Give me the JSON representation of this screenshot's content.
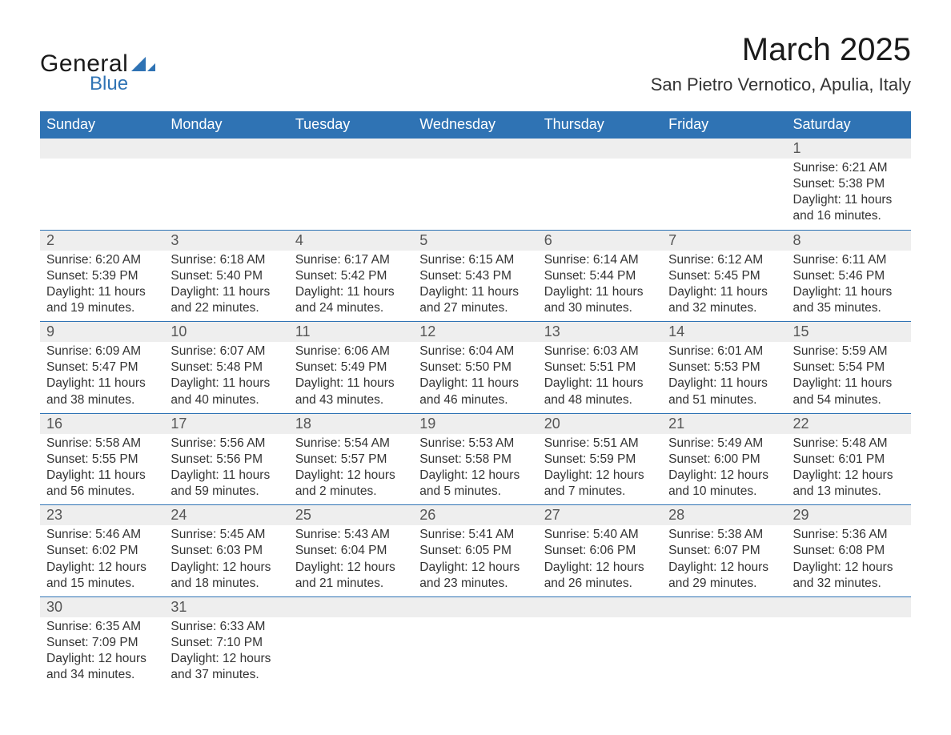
{
  "logo": {
    "text_general": "General",
    "text_blue": "Blue",
    "shape_color": "#2f73b4"
  },
  "title": "March 2025",
  "location": "San Pietro Vernotico, Apulia, Italy",
  "colors": {
    "header_bg": "#2f73b4",
    "header_text": "#ffffff",
    "daynum_bg": "#eeeeee",
    "border": "#2f73b4",
    "text": "#333333",
    "background": "#ffffff"
  },
  "weekdays": [
    "Sunday",
    "Monday",
    "Tuesday",
    "Wednesday",
    "Thursday",
    "Friday",
    "Saturday"
  ],
  "weeks": [
    [
      null,
      null,
      null,
      null,
      null,
      null,
      {
        "n": "1",
        "sr": "6:21 AM",
        "ss": "5:38 PM",
        "dl": "11 hours and 16 minutes."
      }
    ],
    [
      {
        "n": "2",
        "sr": "6:20 AM",
        "ss": "5:39 PM",
        "dl": "11 hours and 19 minutes."
      },
      {
        "n": "3",
        "sr": "6:18 AM",
        "ss": "5:40 PM",
        "dl": "11 hours and 22 minutes."
      },
      {
        "n": "4",
        "sr": "6:17 AM",
        "ss": "5:42 PM",
        "dl": "11 hours and 24 minutes."
      },
      {
        "n": "5",
        "sr": "6:15 AM",
        "ss": "5:43 PM",
        "dl": "11 hours and 27 minutes."
      },
      {
        "n": "6",
        "sr": "6:14 AM",
        "ss": "5:44 PM",
        "dl": "11 hours and 30 minutes."
      },
      {
        "n": "7",
        "sr": "6:12 AM",
        "ss": "5:45 PM",
        "dl": "11 hours and 32 minutes."
      },
      {
        "n": "8",
        "sr": "6:11 AM",
        "ss": "5:46 PM",
        "dl": "11 hours and 35 minutes."
      }
    ],
    [
      {
        "n": "9",
        "sr": "6:09 AM",
        "ss": "5:47 PM",
        "dl": "11 hours and 38 minutes."
      },
      {
        "n": "10",
        "sr": "6:07 AM",
        "ss": "5:48 PM",
        "dl": "11 hours and 40 minutes."
      },
      {
        "n": "11",
        "sr": "6:06 AM",
        "ss": "5:49 PM",
        "dl": "11 hours and 43 minutes."
      },
      {
        "n": "12",
        "sr": "6:04 AM",
        "ss": "5:50 PM",
        "dl": "11 hours and 46 minutes."
      },
      {
        "n": "13",
        "sr": "6:03 AM",
        "ss": "5:51 PM",
        "dl": "11 hours and 48 minutes."
      },
      {
        "n": "14",
        "sr": "6:01 AM",
        "ss": "5:53 PM",
        "dl": "11 hours and 51 minutes."
      },
      {
        "n": "15",
        "sr": "5:59 AM",
        "ss": "5:54 PM",
        "dl": "11 hours and 54 minutes."
      }
    ],
    [
      {
        "n": "16",
        "sr": "5:58 AM",
        "ss": "5:55 PM",
        "dl": "11 hours and 56 minutes."
      },
      {
        "n": "17",
        "sr": "5:56 AM",
        "ss": "5:56 PM",
        "dl": "11 hours and 59 minutes."
      },
      {
        "n": "18",
        "sr": "5:54 AM",
        "ss": "5:57 PM",
        "dl": "12 hours and 2 minutes."
      },
      {
        "n": "19",
        "sr": "5:53 AM",
        "ss": "5:58 PM",
        "dl": "12 hours and 5 minutes."
      },
      {
        "n": "20",
        "sr": "5:51 AM",
        "ss": "5:59 PM",
        "dl": "12 hours and 7 minutes."
      },
      {
        "n": "21",
        "sr": "5:49 AM",
        "ss": "6:00 PM",
        "dl": "12 hours and 10 minutes."
      },
      {
        "n": "22",
        "sr": "5:48 AM",
        "ss": "6:01 PM",
        "dl": "12 hours and 13 minutes."
      }
    ],
    [
      {
        "n": "23",
        "sr": "5:46 AM",
        "ss": "6:02 PM",
        "dl": "12 hours and 15 minutes."
      },
      {
        "n": "24",
        "sr": "5:45 AM",
        "ss": "6:03 PM",
        "dl": "12 hours and 18 minutes."
      },
      {
        "n": "25",
        "sr": "5:43 AM",
        "ss": "6:04 PM",
        "dl": "12 hours and 21 minutes."
      },
      {
        "n": "26",
        "sr": "5:41 AM",
        "ss": "6:05 PM",
        "dl": "12 hours and 23 minutes."
      },
      {
        "n": "27",
        "sr": "5:40 AM",
        "ss": "6:06 PM",
        "dl": "12 hours and 26 minutes."
      },
      {
        "n": "28",
        "sr": "5:38 AM",
        "ss": "6:07 PM",
        "dl": "12 hours and 29 minutes."
      },
      {
        "n": "29",
        "sr": "5:36 AM",
        "ss": "6:08 PM",
        "dl": "12 hours and 32 minutes."
      }
    ],
    [
      {
        "n": "30",
        "sr": "6:35 AM",
        "ss": "7:09 PM",
        "dl": "12 hours and 34 minutes."
      },
      {
        "n": "31",
        "sr": "6:33 AM",
        "ss": "7:10 PM",
        "dl": "12 hours and 37 minutes."
      },
      null,
      null,
      null,
      null,
      null
    ]
  ],
  "labels": {
    "sunrise": "Sunrise: ",
    "sunset": "Sunset: ",
    "daylight": "Daylight: "
  }
}
